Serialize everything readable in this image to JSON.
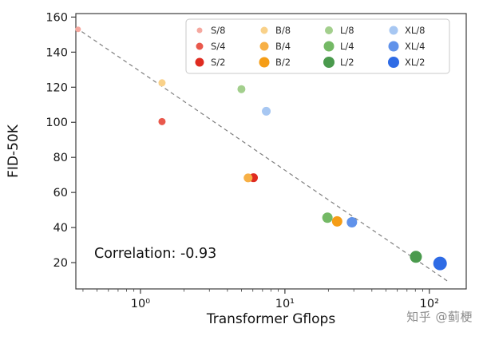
{
  "watermark": {
    "text": "知乎 @蓟梗"
  },
  "chart_data": {
    "type": "scatter",
    "title": "",
    "xlabel": "Transformer Gflops",
    "ylabel": "FID-50K",
    "x_scale": "log",
    "xlim": [
      0.357,
      180
    ],
    "ylim": [
      5,
      162
    ],
    "x_ticks": [
      1,
      10,
      100
    ],
    "x_tick_labels": [
      "10⁰",
      "10¹",
      "10²"
    ],
    "y_ticks": [
      20,
      40,
      60,
      80,
      100,
      120,
      140,
      160
    ],
    "grid": false,
    "annotation": "Correlation: -0.93",
    "trendline": {
      "style": "dashed",
      "color": "#7f7f7f",
      "points": [
        [
          0.357,
          154
        ],
        [
          132.7,
          9.6
        ]
      ]
    },
    "legend": {
      "position": "top",
      "columns": [
        [
          "S/8",
          "S/4",
          "S/2"
        ],
        [
          "B/8",
          "B/4",
          "B/2"
        ],
        [
          "L/8",
          "L/4",
          "L/2"
        ],
        [
          "XL/8",
          "XL/4",
          "XL/2"
        ]
      ]
    },
    "series": [
      {
        "name": "S/8",
        "gflops": 0.37,
        "fid": 153.0,
        "color": "#f5a89f",
        "size": 3.5
      },
      {
        "name": "S/4",
        "gflops": 1.41,
        "fid": 100.4,
        "color": "#e9584c",
        "size": 4.5
      },
      {
        "name": "S/2",
        "gflops": 6.06,
        "fid": 68.4,
        "color": "#df2b20",
        "size": 5.5
      },
      {
        "name": "B/8",
        "gflops": 1.41,
        "fid": 122.5,
        "color": "#f9d189",
        "size": 4.5
      },
      {
        "name": "B/4",
        "gflops": 5.56,
        "fid": 68.3,
        "color": "#f7b046",
        "size": 5.5
      },
      {
        "name": "B/2",
        "gflops": 23.0,
        "fid": 43.5,
        "color": "#f59d16",
        "size": 6.5
      },
      {
        "name": "L/8",
        "gflops": 5.0,
        "fid": 118.9,
        "color": "#a3cf8d",
        "size": 5.0
      },
      {
        "name": "L/4",
        "gflops": 19.7,
        "fid": 45.6,
        "color": "#74b965",
        "size": 6.5
      },
      {
        "name": "L/2",
        "gflops": 80.7,
        "fid": 23.3,
        "color": "#4a9a4d",
        "size": 7.5
      },
      {
        "name": "XL/8",
        "gflops": 7.43,
        "fid": 106.3,
        "color": "#a7c7f2",
        "size": 5.5
      },
      {
        "name": "XL/4",
        "gflops": 29.1,
        "fid": 43.0,
        "color": "#6092ea",
        "size": 6.5
      },
      {
        "name": "XL/2",
        "gflops": 118.6,
        "fid": 19.5,
        "color": "#2e6be5",
        "size": 8.5
      }
    ]
  }
}
